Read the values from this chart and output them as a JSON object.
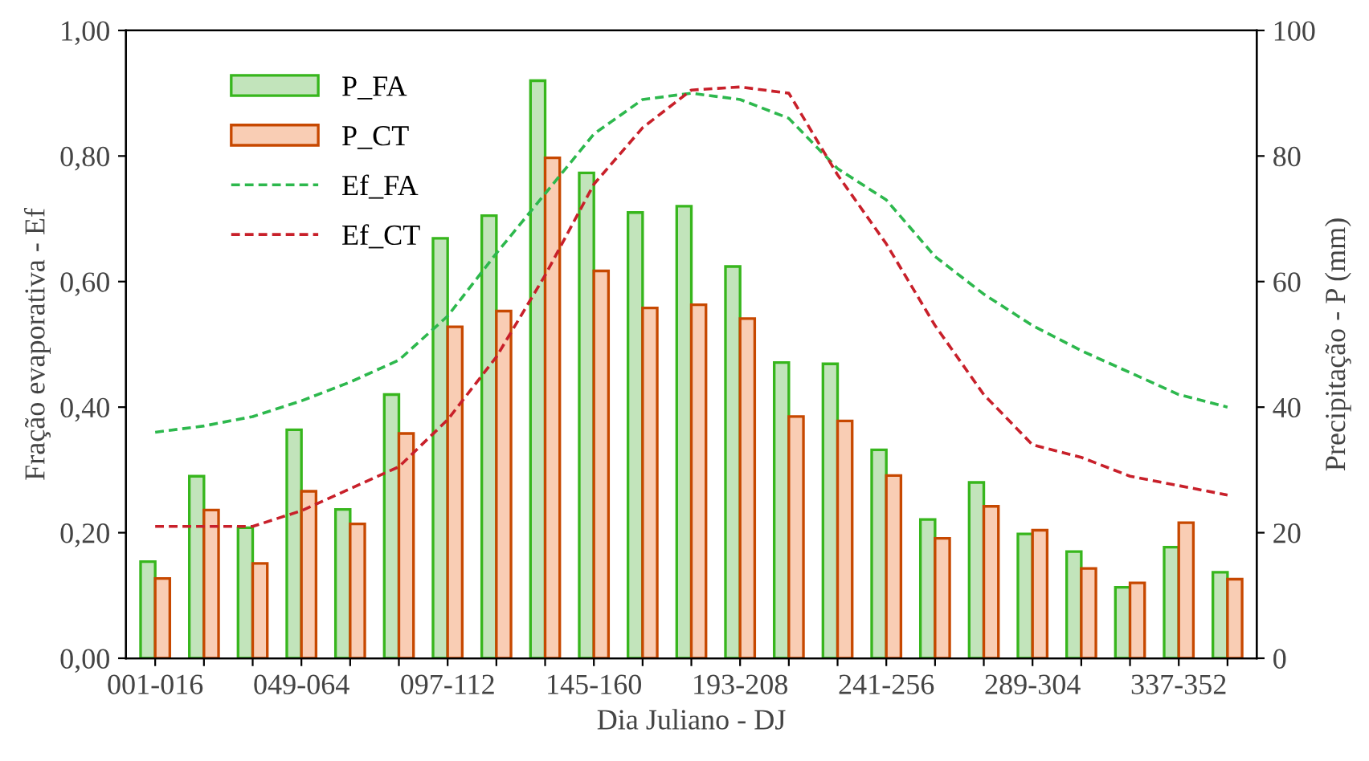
{
  "chart_data": {
    "type": "bar",
    "xlabel": "Dia Juliano - DJ",
    "ylabel": "Fração evaporativa - Ef",
    "y2label": "Precipitação - P (mm)",
    "categories": [
      "001-016",
      null,
      null,
      "049-064",
      null,
      null,
      "097-112",
      null,
      null,
      "145-160",
      null,
      null,
      "193-208",
      null,
      null,
      "241-256",
      null,
      null,
      "289-304",
      null,
      null,
      "337-352",
      null
    ],
    "series": [
      {
        "name": "P_FA",
        "axis": "y2",
        "color": "#c2e4bb",
        "values": [
          15.4,
          29.0,
          20.8,
          36.4,
          23.7,
          42.0,
          66.9,
          70.5,
          92.0,
          77.3,
          71.0,
          72.0,
          62.4,
          47.1,
          46.9,
          33.2,
          22.1,
          28.0,
          19.8,
          17.0,
          11.3,
          17.7,
          13.7
        ]
      },
      {
        "name": "P_CT",
        "axis": "y2",
        "color": "#f9cdb4",
        "values": [
          12.7,
          23.6,
          15.1,
          26.6,
          21.4,
          35.8,
          52.8,
          55.3,
          79.7,
          61.7,
          55.8,
          56.3,
          54.1,
          38.5,
          37.8,
          29.1,
          19.1,
          24.2,
          20.4,
          14.3,
          12.0,
          21.6,
          12.6
        ]
      },
      {
        "name": "Ef_FA",
        "type": "line",
        "axis": "y",
        "color": "#2db84d",
        "line_style": "dashed",
        "values": [
          0.36,
          0.37,
          0.385,
          0.41,
          0.44,
          0.475,
          0.545,
          0.645,
          0.74,
          0.835,
          0.89,
          0.9,
          0.89,
          0.86,
          0.78,
          0.73,
          0.64,
          0.58,
          0.53,
          0.49,
          0.455,
          0.42,
          0.4
        ]
      },
      {
        "name": "Ef_CT",
        "type": "line",
        "axis": "y",
        "color": "#c8202a",
        "line_style": "dashed",
        "values": [
          0.21,
          0.21,
          0.21,
          0.235,
          0.27,
          0.305,
          0.38,
          0.48,
          0.61,
          0.755,
          0.845,
          0.905,
          0.91,
          0.9,
          0.77,
          0.66,
          0.53,
          0.42,
          0.34,
          0.32,
          0.29,
          0.275,
          0.26
        ]
      }
    ],
    "ylim": [
      0,
      1
    ],
    "yticks": [
      {
        "value": 0,
        "label": "0,00"
      },
      {
        "value": 0.2,
        "label": "0,20"
      },
      {
        "value": 0.4,
        "label": "0,40"
      },
      {
        "value": 0.6,
        "label": "0,60"
      },
      {
        "value": 0.8,
        "label": "0,80"
      },
      {
        "value": 1,
        "label": "1,00"
      }
    ],
    "y2lim": [
      0,
      100
    ],
    "y2ticks": [
      0,
      20,
      40,
      60,
      80,
      100
    ],
    "legend": "top left",
    "grid": false,
    "marker": "none"
  }
}
